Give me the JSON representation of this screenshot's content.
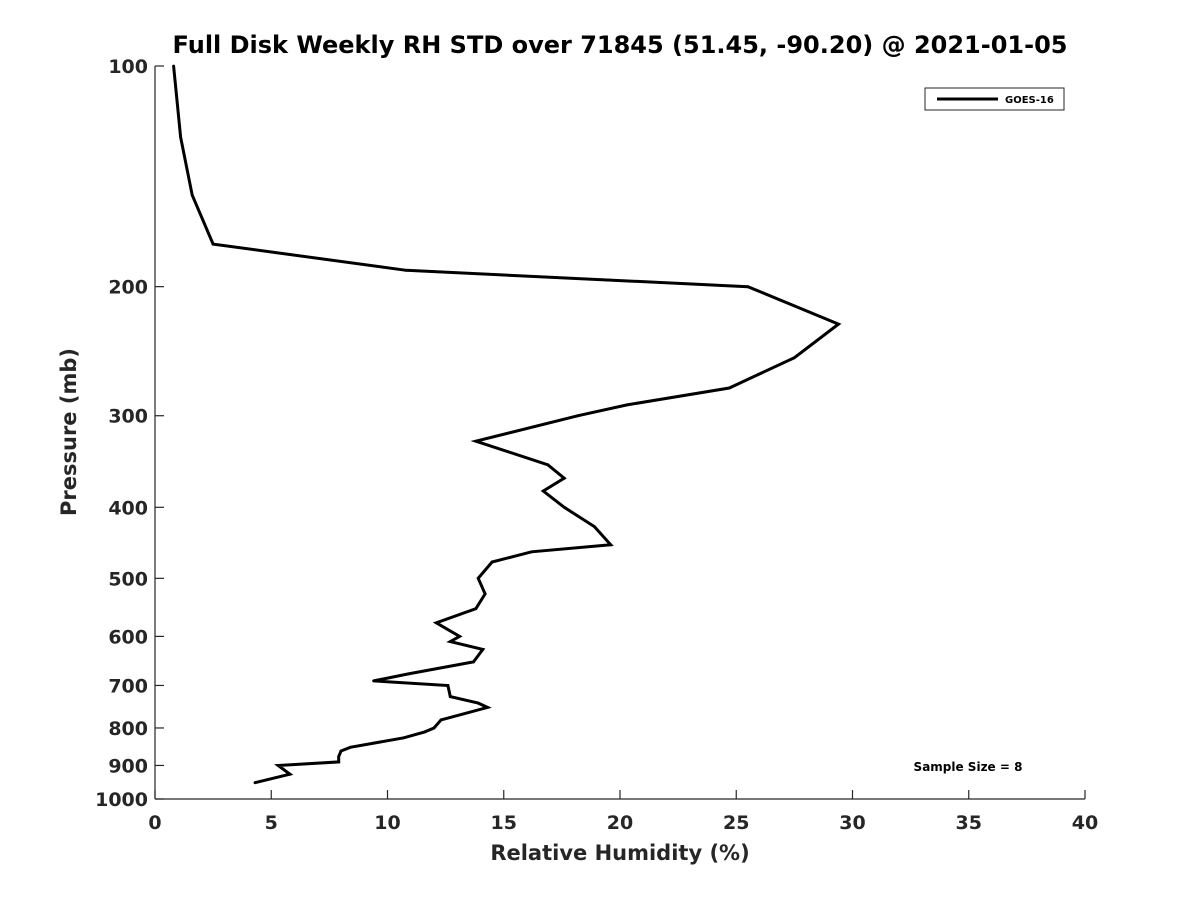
{
  "chart_data": {
    "type": "line",
    "title": "Full Disk Weekly RH STD over 71845 (51.45, -90.20) @ 2021-01-05",
    "xlabel": "Relative Humidity (%)",
    "ylabel": "Pressure (mb)",
    "xlim": [
      0,
      40
    ],
    "ylim": [
      100,
      1000
    ],
    "y_scale": "log",
    "y_reversed": true,
    "grid": false,
    "legend_position": "top-right",
    "x_ticks": [
      "0",
      "5",
      "10",
      "15",
      "20",
      "25",
      "30",
      "35",
      "40"
    ],
    "y_ticks": [
      "100",
      "200",
      "300",
      "400",
      "500",
      "600",
      "700",
      "800",
      "900",
      "1000"
    ],
    "annotation": "Sample Size = 8",
    "series": [
      {
        "name": "GOES-16",
        "color": "#000000",
        "points": [
          [
            0.8,
            100
          ],
          [
            1.1,
            125
          ],
          [
            1.6,
            150
          ],
          [
            2.5,
            175
          ],
          [
            10.8,
            190
          ],
          [
            25.5,
            200
          ],
          [
            29.4,
            225
          ],
          [
            27.5,
            250
          ],
          [
            24.7,
            275
          ],
          [
            20.3,
            290
          ],
          [
            18.2,
            300
          ],
          [
            13.8,
            325
          ],
          [
            16.9,
            350
          ],
          [
            17.6,
            365
          ],
          [
            16.7,
            380
          ],
          [
            17.6,
            400
          ],
          [
            18.9,
            425
          ],
          [
            19.6,
            450
          ],
          [
            16.2,
            460
          ],
          [
            14.5,
            475
          ],
          [
            13.9,
            500
          ],
          [
            14.2,
            525
          ],
          [
            13.8,
            550
          ],
          [
            12.1,
            575
          ],
          [
            13.1,
            600
          ],
          [
            12.7,
            610
          ],
          [
            14.1,
            625
          ],
          [
            13.7,
            650
          ],
          [
            10.9,
            675
          ],
          [
            9.4,
            690
          ],
          [
            12.6,
            700
          ],
          [
            12.7,
            725
          ],
          [
            13.9,
            740
          ],
          [
            14.3,
            750
          ],
          [
            12.3,
            780
          ],
          [
            12.0,
            800
          ],
          [
            11.6,
            810
          ],
          [
            10.7,
            825
          ],
          [
            8.4,
            850
          ],
          [
            8.0,
            860
          ],
          [
            7.9,
            875
          ],
          [
            7.9,
            890
          ],
          [
            5.3,
            900
          ],
          [
            5.8,
            925
          ],
          [
            4.3,
            950
          ]
        ]
      }
    ]
  }
}
